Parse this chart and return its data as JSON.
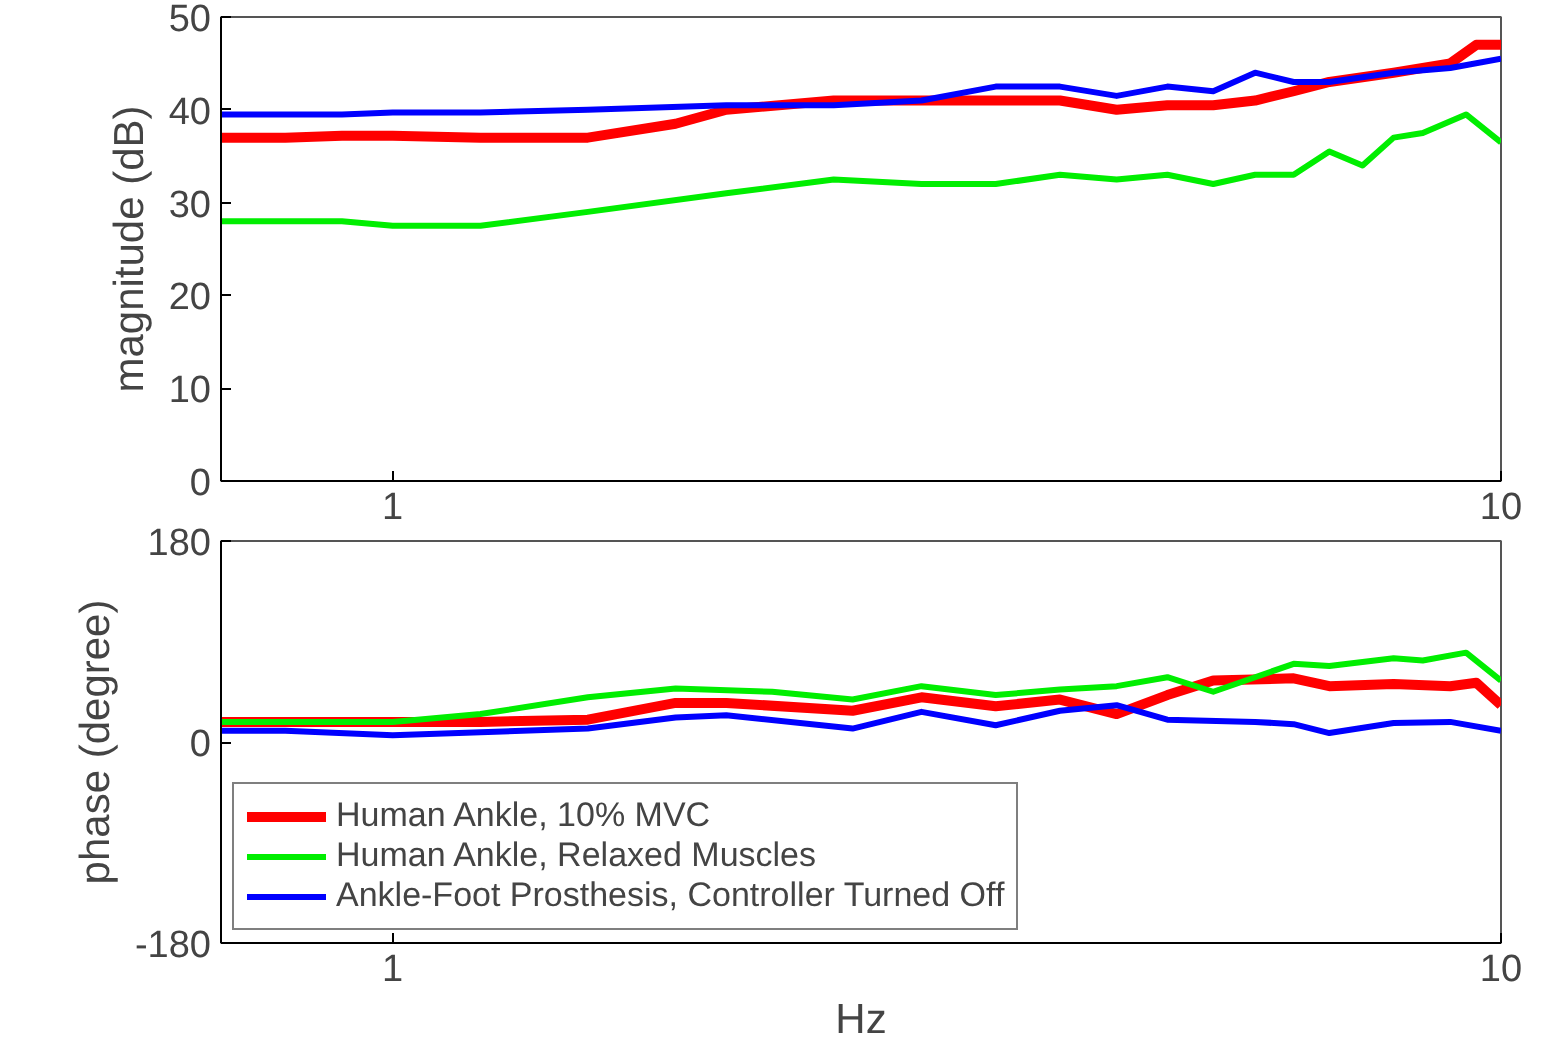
{
  "chart_data": [
    {
      "type": "line",
      "ylabel": "magnitude (dB)",
      "xlim": [
        0.7,
        10
      ],
      "xticks": [
        1,
        10
      ],
      "ylim": [
        0,
        50
      ],
      "yticks": [
        0,
        10,
        20,
        30,
        40,
        50
      ],
      "log": "x",
      "grid": false,
      "legend": false,
      "series": [
        {
          "color": "#ff0000",
          "x": [
            0.7,
            0.8,
            0.9,
            1,
            1.2,
            1.5,
            1.8,
            2,
            2.5,
            3,
            3.5,
            4,
            4.5,
            5,
            5.5,
            6,
            6.5,
            7,
            8,
            9,
            9.5,
            10
          ],
          "values": [
            37,
            37,
            37.2,
            37.2,
            37,
            37,
            38.5,
            40,
            41,
            41,
            41,
            41,
            40,
            40.5,
            40.5,
            41,
            42,
            43,
            44,
            45,
            47,
            47
          ]
        },
        {
          "color": "#00ee00",
          "x": [
            0.7,
            0.8,
            0.9,
            1,
            1.2,
            1.5,
            2,
            2.5,
            3,
            3.5,
            4,
            4.5,
            5,
            5.5,
            6,
            6.5,
            7,
            7.5,
            8,
            8.5,
            9.3,
            10
          ],
          "values": [
            28,
            28,
            28,
            27.5,
            27.5,
            29,
            31,
            32.5,
            32,
            32,
            33,
            32.5,
            33,
            32,
            33,
            33,
            35.5,
            34,
            37,
            37.5,
            39.5,
            36.5
          ]
        },
        {
          "color": "#0000ff",
          "x": [
            0.7,
            0.8,
            0.9,
            1,
            1.2,
            1.5,
            2,
            2.5,
            3,
            3.5,
            4,
            4.5,
            5,
            5.5,
            6,
            6.5,
            7,
            8,
            9,
            10
          ],
          "values": [
            39.5,
            39.5,
            39.5,
            39.7,
            39.7,
            40,
            40.5,
            40.5,
            41,
            42.5,
            42.5,
            41.5,
            42.5,
            42,
            44,
            43,
            43,
            44,
            44.5,
            45.5
          ]
        }
      ]
    },
    {
      "type": "line",
      "xlabel": "Hz",
      "ylabel": "phase (degree)",
      "xlim": [
        0.7,
        10
      ],
      "xticks": [
        1,
        10
      ],
      "ylim": [
        -180,
        180
      ],
      "yticks": [
        -180,
        0,
        180
      ],
      "log": "x",
      "grid": false,
      "legend": "bottom left",
      "series": [
        {
          "name": "Human Ankle, 10% MVC",
          "color": "#ff0000",
          "x": [
            0.7,
            0.8,
            1,
            1.2,
            1.5,
            1.8,
            2,
            2.6,
            3,
            3.5,
            4,
            4.5,
            5,
            5.5,
            6.5,
            7,
            8,
            9,
            9.5,
            10
          ],
          "values": [
            18,
            18,
            18,
            18,
            20,
            35,
            35,
            28,
            40,
            32,
            38,
            25,
            42,
            55,
            57,
            50,
            52,
            50,
            53,
            33
          ]
        },
        {
          "name": "Human Ankle, Relaxed Muscles",
          "color": "#00ee00",
          "x": [
            0.7,
            0.8,
            1,
            1.2,
            1.5,
            1.8,
            2.2,
            2.6,
            3,
            3.5,
            4,
            4.5,
            5,
            5.5,
            6.5,
            7,
            8,
            8.5,
            9.3,
            10
          ],
          "values": [
            18,
            18,
            18,
            25,
            40,
            48,
            45,
            38,
            50,
            42,
            47,
            50,
            58,
            45,
            70,
            68,
            75,
            73,
            80,
            55
          ]
        },
        {
          "name": "Ankle-Foot Prosthesis, Controller Turned Off",
          "color": "#0000ff",
          "x": [
            0.7,
            0.8,
            1,
            1.5,
            1.8,
            2,
            2.6,
            3,
            3.5,
            4,
            4.5,
            5,
            6,
            6.5,
            7,
            8,
            9,
            10
          ],
          "values": [
            10,
            10,
            6,
            12,
            22,
            24,
            12,
            27,
            15,
            28,
            33,
            20,
            18,
            16,
            8,
            17,
            18,
            10
          ]
        }
      ]
    }
  ]
}
